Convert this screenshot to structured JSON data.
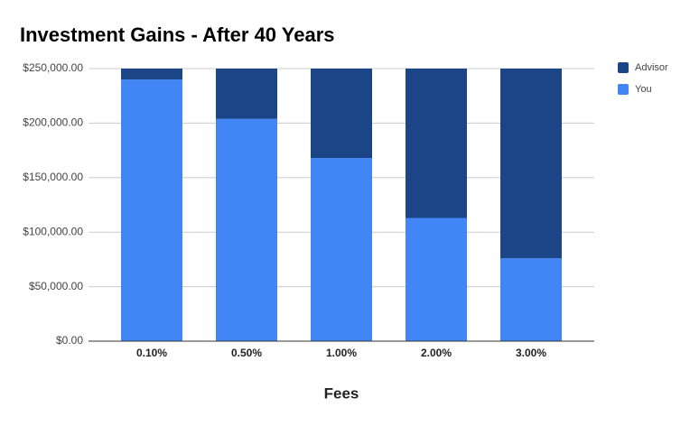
{
  "chart_data": {
    "type": "stacked_bar",
    "title": "Investment Gains - After 40 Years",
    "x_label": "Fees",
    "categories": [
      "0.10%",
      "0.50%",
      "1.00%",
      "2.00%",
      "3.00%"
    ],
    "series": [
      {
        "name": "Advisor",
        "color": "#1c4587",
        "values": [
          10000,
          46000,
          82000,
          137000,
          174000
        ]
      },
      {
        "name": "You",
        "color": "#4285f4",
        "values": [
          240000,
          204000,
          168000,
          113000,
          76000
        ]
      }
    ],
    "ylim": [
      0,
      250000
    ],
    "yticks": [
      {
        "value": 0,
        "label": "$0.00"
      },
      {
        "value": 50000,
        "label": "$50,000.00"
      },
      {
        "value": 100000,
        "label": "$100,000.00"
      },
      {
        "value": 150000,
        "label": "$150,000.00"
      },
      {
        "value": 200000,
        "label": "$200,000.00"
      },
      {
        "value": 250000,
        "label": "$250,000.00"
      }
    ],
    "grid": true,
    "legend": "right"
  }
}
